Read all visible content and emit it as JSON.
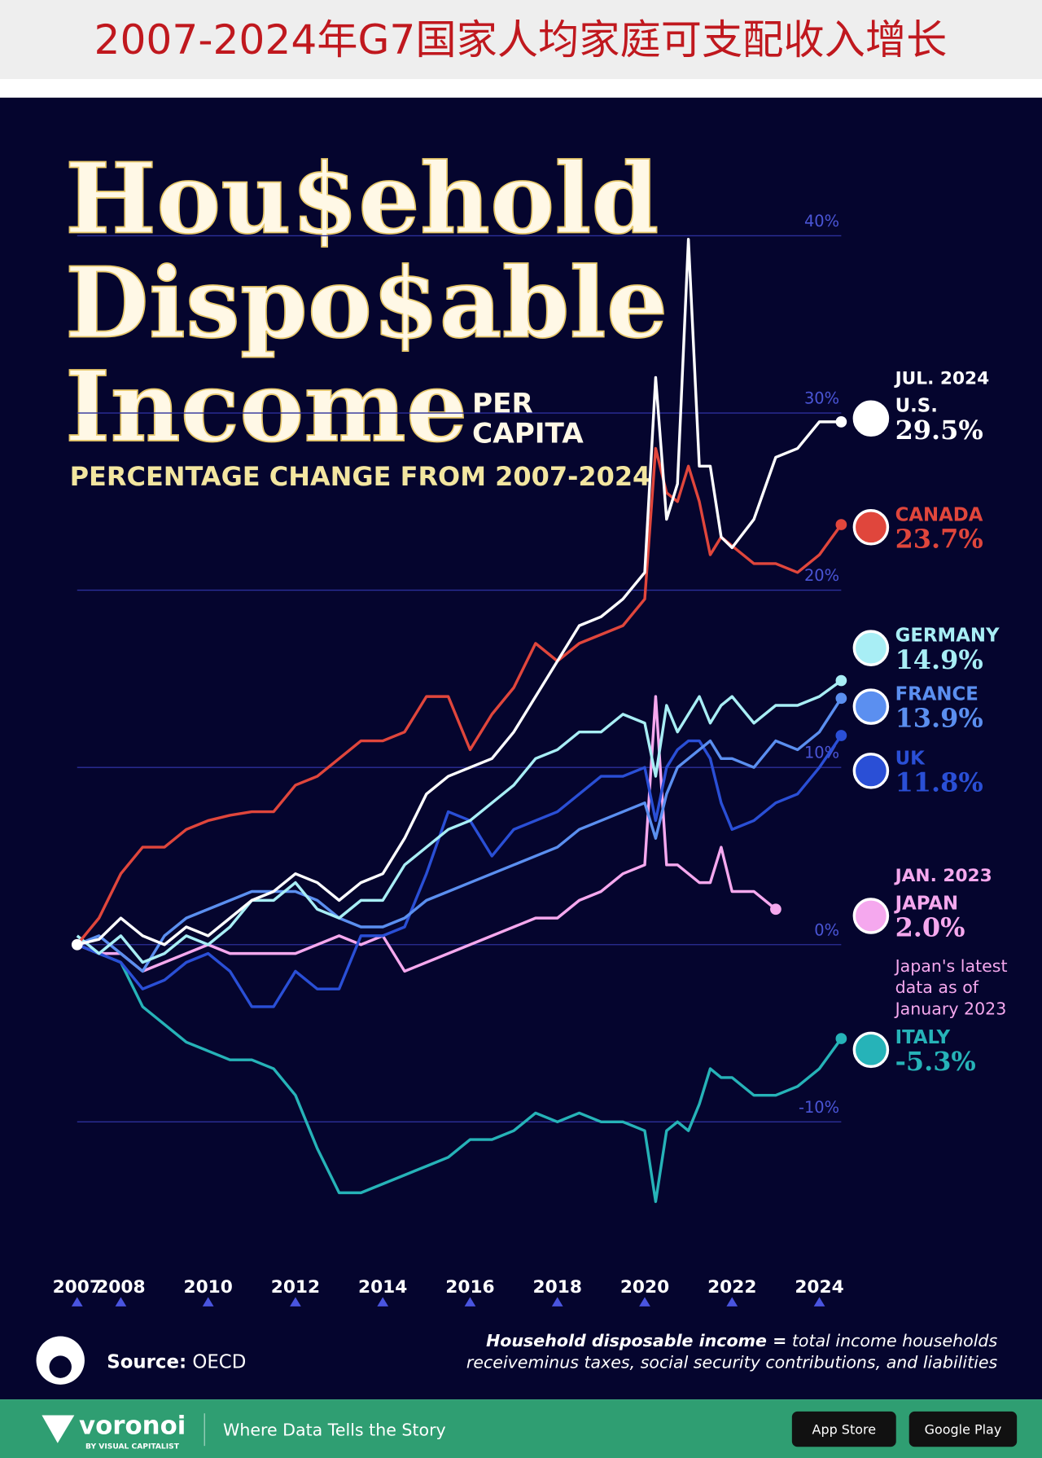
{
  "chart_data": {
    "type": "line",
    "header": "2007-2024年G7国家人均家庭可支配收入增长",
    "title_lines": [
      "Hou$ehold",
      "Dispo$able",
      "Income"
    ],
    "title_suffix": [
      "PER",
      "CAPITA"
    ],
    "subtitle": "PERCENTAGE CHANGE FROM 2007-2024",
    "x": [
      2007,
      2007.5,
      2008,
      2008.5,
      2009,
      2009.5,
      2010,
      2010.5,
      2011,
      2011.5,
      2012,
      2012.5,
      2013,
      2013.5,
      2014,
      2014.5,
      2015,
      2015.5,
      2016,
      2016.5,
      2017,
      2017.5,
      2018,
      2018.5,
      2019,
      2019.5,
      2020,
      2020.25,
      2020.5,
      2020.75,
      2021,
      2021.25,
      2021.5,
      2021.75,
      2022,
      2022.5,
      2023,
      2023.5,
      2024,
      2024.5
    ],
    "xlim": [
      2007,
      2024.5
    ],
    "xticks": [
      2007,
      2008,
      2010,
      2012,
      2014,
      2016,
      2018,
      2020,
      2022,
      2024
    ],
    "ylim": [
      -14.8,
      40.5
    ],
    "yticks": [
      {
        "value": -10,
        "label": "-10%"
      },
      {
        "value": 0,
        "label": "0%"
      },
      {
        "value": 10,
        "label": "10%"
      },
      {
        "value": 20,
        "label": "20%"
      },
      {
        "value": 30,
        "label": "30%"
      },
      {
        "value": 40,
        "label": "40%"
      }
    ],
    "grid": true,
    "series": [
      {
        "name": "U.S.",
        "color": "#ffffff",
        "date_label": "JUL. 2024",
        "values": [
          0,
          0.3,
          1.5,
          0.5,
          0,
          1,
          0.5,
          1.5,
          2.5,
          3,
          4,
          3.5,
          2.5,
          3.5,
          4,
          6,
          8.5,
          9.5,
          10,
          10.5,
          12,
          14,
          16,
          18,
          18.5,
          19.5,
          21,
          32,
          24,
          26,
          39.8,
          27,
          27,
          23,
          22.4,
          24,
          27.5,
          28,
          29.5,
          29.5
        ],
        "value_labels": [
          null,
          null,
          null,
          null,
          null,
          null,
          null,
          null,
          null,
          null,
          null,
          null,
          null,
          null,
          null,
          null,
          null,
          null,
          null,
          null,
          null,
          null,
          null,
          null,
          null,
          null,
          null,
          null,
          null,
          null,
          null,
          null,
          null,
          null,
          null,
          null,
          null,
          null,
          null,
          "29.5%"
        ]
      },
      {
        "name": "CANADA",
        "color": "#e0463c",
        "values": [
          0,
          1.5,
          4,
          5.5,
          5.5,
          6.5,
          7,
          7.3,
          7.5,
          7.5,
          9,
          9.5,
          10.5,
          11.5,
          11.5,
          12,
          14,
          14,
          11,
          13,
          14.5,
          17,
          16,
          17,
          17.5,
          18,
          19.5,
          28,
          25.5,
          25,
          27,
          25,
          22,
          23,
          22.5,
          21.5,
          21.5,
          21,
          22,
          23.7
        ],
        "value_labels": [
          null,
          null,
          null,
          null,
          null,
          null,
          null,
          null,
          null,
          null,
          null,
          null,
          null,
          null,
          null,
          null,
          null,
          null,
          null,
          null,
          null,
          null,
          null,
          null,
          null,
          null,
          null,
          null,
          null,
          null,
          null,
          null,
          null,
          null,
          null,
          null,
          null,
          null,
          null,
          "23.7%"
        ]
      },
      {
        "name": "GERMANY",
        "color": "#a8eef5",
        "values": [
          0.5,
          -0.5,
          0.5,
          -1,
          -0.5,
          0.5,
          0,
          1,
          2.5,
          2.5,
          3.5,
          2,
          1.5,
          2.5,
          2.5,
          4.5,
          5.5,
          6.5,
          7,
          8,
          9,
          10.5,
          11,
          12,
          12,
          13,
          12.5,
          9.5,
          13.5,
          12,
          13,
          14,
          12.5,
          13.5,
          14,
          12.5,
          13.5,
          13.5,
          14,
          14.9
        ],
        "value_labels": [
          null,
          null,
          null,
          null,
          null,
          null,
          null,
          null,
          null,
          null,
          null,
          null,
          null,
          null,
          null,
          null,
          null,
          null,
          null,
          null,
          null,
          null,
          null,
          null,
          null,
          null,
          null,
          null,
          null,
          null,
          null,
          null,
          null,
          null,
          null,
          null,
          null,
          null,
          null,
          "14.9%"
        ]
      },
      {
        "name": "FRANCE",
        "color": "#5b8ff0",
        "values": [
          0,
          0.5,
          -0.5,
          -1.5,
          0.5,
          1.5,
          2,
          2.5,
          3,
          3,
          3,
          2.5,
          1.5,
          1,
          1,
          1.5,
          2.5,
          3,
          3.5,
          4,
          4.5,
          5,
          5.5,
          6.5,
          7,
          7.5,
          8,
          6,
          8.5,
          10,
          10.5,
          11,
          11.5,
          10.5,
          10.5,
          10,
          11.5,
          11,
          12,
          13.9
        ],
        "value_labels": [
          null,
          null,
          null,
          null,
          null,
          null,
          null,
          null,
          null,
          null,
          null,
          null,
          null,
          null,
          null,
          null,
          null,
          null,
          null,
          null,
          null,
          null,
          null,
          null,
          null,
          null,
          null,
          null,
          null,
          null,
          null,
          null,
          null,
          null,
          null,
          null,
          null,
          null,
          null,
          "13.9%"
        ]
      },
      {
        "name": "UK",
        "color": "#2a4fd6",
        "values": [
          0,
          -0.5,
          -1,
          -2.5,
          -2,
          -1,
          -0.5,
          -1.5,
          -3.5,
          -3.5,
          -1.5,
          -2.5,
          -2.5,
          0.5,
          0.5,
          1,
          4,
          7.5,
          7,
          5,
          6.5,
          7,
          7.5,
          8.5,
          9.5,
          9.5,
          10,
          7,
          10,
          11,
          11.5,
          11.5,
          10.5,
          8,
          6.5,
          7,
          8,
          8.5,
          10,
          11.8
        ],
        "value_labels": [
          null,
          null,
          null,
          null,
          null,
          null,
          null,
          null,
          null,
          null,
          null,
          null,
          null,
          null,
          null,
          null,
          null,
          null,
          null,
          null,
          null,
          null,
          null,
          null,
          null,
          null,
          null,
          null,
          null,
          null,
          null,
          null,
          null,
          null,
          null,
          null,
          null,
          null,
          null,
          "11.8%"
        ]
      },
      {
        "name": "JAPAN",
        "color": "#f5a8ee",
        "date_label": "JAN. 2023",
        "note": [
          "Japan's latest",
          "data as of",
          "January 2023"
        ],
        "values": [
          0,
          -0.5,
          -0.5,
          -1.5,
          -1,
          -0.5,
          0,
          -0.5,
          -0.5,
          -0.5,
          -0.5,
          0,
          0.5,
          0,
          0.5,
          -1.5,
          -1,
          -0.5,
          0,
          0.5,
          1,
          1.5,
          1.5,
          2.5,
          3,
          4,
          4.5,
          14,
          4.5,
          4.5,
          4,
          3.5,
          3.5,
          5.5,
          3,
          3,
          2.0,
          null,
          null,
          null
        ],
        "value_labels": [
          null,
          null,
          null,
          null,
          null,
          null,
          null,
          null,
          null,
          null,
          null,
          null,
          null,
          null,
          null,
          null,
          null,
          null,
          null,
          null,
          null,
          null,
          null,
          null,
          null,
          null,
          null,
          null,
          null,
          null,
          null,
          null,
          null,
          null,
          null,
          null,
          "2.0%",
          null,
          null,
          null
        ]
      },
      {
        "name": "ITALY",
        "color": "#26b3b8",
        "values": [
          0,
          -0.5,
          -1,
          -3.5,
          -4.5,
          -5.5,
          -6,
          -6.5,
          -6.5,
          -7,
          -8.5,
          -11.5,
          -14,
          -14,
          -13.5,
          -13,
          -12.5,
          -12,
          -11,
          -11,
          -10.5,
          -9.5,
          -10,
          -9.5,
          -10,
          -10,
          -10.5,
          -14.5,
          -10.5,
          -10,
          -10.5,
          -9,
          -7,
          -7.5,
          -7.5,
          -8.5,
          -8.5,
          -8,
          -7,
          -5.3
        ],
        "value_labels": [
          null,
          null,
          null,
          null,
          null,
          null,
          null,
          null,
          null,
          null,
          null,
          null,
          null,
          null,
          null,
          null,
          null,
          null,
          null,
          null,
          null,
          null,
          null,
          null,
          null,
          null,
          null,
          null,
          null,
          null,
          null,
          null,
          null,
          null,
          null,
          null,
          null,
          null,
          null,
          "-5.3%"
        ]
      }
    ],
    "source_label": "Source:",
    "source": "OECD",
    "definition": {
      "term": "Household disposable income =",
      "lines": [
        "total income households",
        "receiveminus taxes, social security contributions, and liabilities"
      ]
    },
    "brand": "voronoi",
    "brand_sub": "BY VISUAL CAPITALIST",
    "tagline": "Where Data Tells the Story",
    "buttons": [
      "App Store",
      "Google Play"
    ]
  }
}
